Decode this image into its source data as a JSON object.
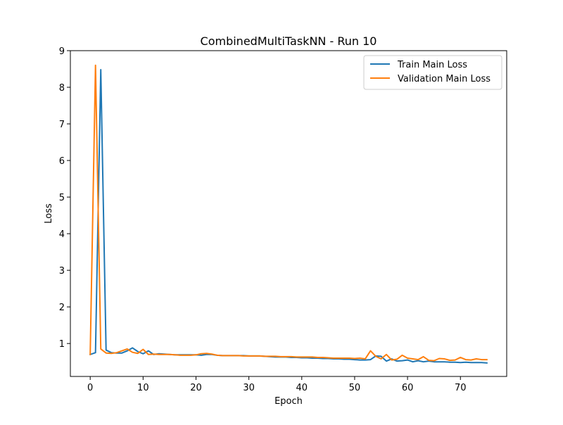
{
  "chart_data": {
    "type": "line",
    "title": "CombinedMultiTaskNN - Run 10",
    "xlabel": "Epoch",
    "ylabel": "Loss",
    "xlim": [
      -3.75,
      78.75
    ],
    "ylim": [
      0.1,
      9.0
    ],
    "xticks": [
      0,
      10,
      20,
      30,
      40,
      50,
      60,
      70
    ],
    "yticks": [
      1,
      2,
      3,
      4,
      5,
      6,
      7,
      8,
      9
    ],
    "grid": false,
    "legend_position": "top-right",
    "x": [
      0,
      1,
      2,
      3,
      4,
      5,
      6,
      7,
      8,
      9,
      10,
      11,
      12,
      13,
      14,
      15,
      16,
      17,
      18,
      19,
      20,
      21,
      22,
      23,
      24,
      25,
      26,
      27,
      28,
      29,
      30,
      31,
      32,
      33,
      34,
      35,
      36,
      37,
      38,
      39,
      40,
      41,
      42,
      43,
      44,
      45,
      46,
      47,
      48,
      49,
      50,
      51,
      52,
      53,
      54,
      55,
      56,
      57,
      58,
      59,
      60,
      61,
      62,
      63,
      64,
      65,
      66,
      67,
      68,
      69,
      70,
      71,
      72,
      73,
      74,
      75
    ],
    "series": [
      {
        "name": "Train Main Loss",
        "color": "#1f77b4",
        "values": [
          0.7,
          0.75,
          8.48,
          0.82,
          0.75,
          0.74,
          0.74,
          0.8,
          0.88,
          0.78,
          0.72,
          0.8,
          0.7,
          0.72,
          0.71,
          0.7,
          0.69,
          0.69,
          0.69,
          0.69,
          0.69,
          0.68,
          0.7,
          0.7,
          0.68,
          0.67,
          0.67,
          0.67,
          0.67,
          0.67,
          0.66,
          0.66,
          0.66,
          0.65,
          0.64,
          0.63,
          0.63,
          0.63,
          0.62,
          0.62,
          0.61,
          0.61,
          0.6,
          0.6,
          0.59,
          0.59,
          0.58,
          0.58,
          0.57,
          0.57,
          0.56,
          0.55,
          0.55,
          0.56,
          0.66,
          0.65,
          0.52,
          0.58,
          0.52,
          0.53,
          0.55,
          0.5,
          0.53,
          0.5,
          0.52,
          0.5,
          0.5,
          0.5,
          0.49,
          0.49,
          0.48,
          0.49,
          0.48,
          0.48,
          0.48,
          0.47
        ]
      },
      {
        "name": "Validation Main Loss",
        "color": "#ff7f0e",
        "values": [
          0.7,
          8.6,
          0.85,
          0.74,
          0.73,
          0.75,
          0.8,
          0.85,
          0.76,
          0.73,
          0.84,
          0.7,
          0.71,
          0.7,
          0.7,
          0.7,
          0.69,
          0.68,
          0.68,
          0.68,
          0.69,
          0.72,
          0.73,
          0.71,
          0.68,
          0.67,
          0.67,
          0.67,
          0.67,
          0.66,
          0.66,
          0.66,
          0.66,
          0.65,
          0.65,
          0.65,
          0.64,
          0.64,
          0.64,
          0.63,
          0.63,
          0.63,
          0.63,
          0.62,
          0.62,
          0.61,
          0.6,
          0.6,
          0.6,
          0.6,
          0.59,
          0.6,
          0.58,
          0.8,
          0.65,
          0.58,
          0.7,
          0.55,
          0.57,
          0.68,
          0.6,
          0.58,
          0.56,
          0.64,
          0.54,
          0.53,
          0.59,
          0.58,
          0.54,
          0.55,
          0.62,
          0.56,
          0.55,
          0.58,
          0.56,
          0.56
        ]
      }
    ]
  }
}
